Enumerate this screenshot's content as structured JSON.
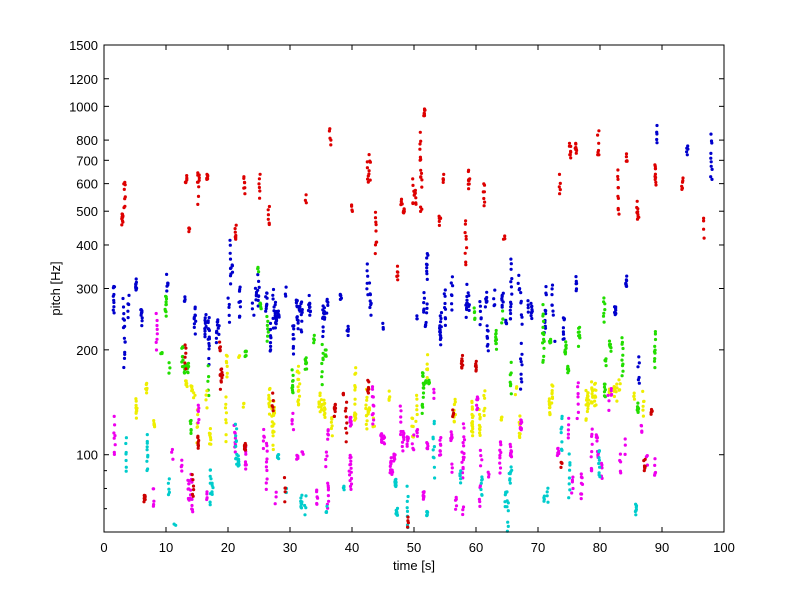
{
  "chart_data": {
    "type": "scatter",
    "title": "",
    "xlabel": "time [s]",
    "ylabel": "pitch [Hz]",
    "xlim": [
      0,
      100
    ],
    "ylim": [
      60,
      1500
    ],
    "yscale": "log",
    "grid": false,
    "legend": "none",
    "x_ticks": [
      "0",
      "10",
      "20",
      "30",
      "40",
      "50",
      "60",
      "70",
      "80",
      "90",
      "100"
    ],
    "x_tick_values": [
      0,
      10,
      20,
      30,
      40,
      50,
      60,
      70,
      80,
      90,
      100
    ],
    "y_ticks": [
      "100",
      "200",
      "300",
      "400",
      "500",
      "600",
      "700",
      "800",
      "1000",
      "1200",
      "1500"
    ],
    "y_tick_values": [
      100,
      200,
      300,
      400,
      500,
      600,
      700,
      800,
      1000,
      1200,
      1500
    ],
    "series": [
      {
        "color": "#0000cc",
        "trend": [
          [
            2,
            260
          ],
          [
            10,
            255
          ],
          [
            20,
            270
          ],
          [
            30,
            270
          ],
          [
            40,
            255
          ],
          [
            50,
            260
          ],
          [
            60,
            255
          ],
          [
            70,
            265
          ],
          [
            80,
            265
          ],
          [
            88,
            240
          ]
        ],
        "spread": 0.13,
        "t_range": [
          1.5,
          89
        ],
        "count": 520
      },
      {
        "color": "#22dd00",
        "trend": [
          [
            2,
            190
          ],
          [
            10,
            185
          ],
          [
            20,
            200
          ],
          [
            30,
            195
          ],
          [
            40,
            185
          ],
          [
            50,
            190
          ],
          [
            60,
            180
          ],
          [
            70,
            190
          ],
          [
            80,
            185
          ],
          [
            88,
            175
          ]
        ],
        "spread": 0.22,
        "t_range": [
          1.5,
          89
        ],
        "count": 260
      },
      {
        "color": "#eeee00",
        "trend": [
          [
            2,
            150
          ],
          [
            10,
            145
          ],
          [
            20,
            150
          ],
          [
            30,
            145
          ],
          [
            40,
            140
          ],
          [
            50,
            150
          ],
          [
            60,
            140
          ],
          [
            70,
            145
          ],
          [
            80,
            145
          ],
          [
            88,
            150
          ]
        ],
        "spread": 0.12,
        "t_range": [
          1.5,
          89
        ],
        "count": 360
      },
      {
        "color": "#ee00ee",
        "trend": [
          [
            2,
            105
          ],
          [
            10,
            100
          ],
          [
            20,
            105
          ],
          [
            30,
            100
          ],
          [
            40,
            100
          ],
          [
            50,
            105
          ],
          [
            60,
            100
          ],
          [
            70,
            100
          ],
          [
            80,
            100
          ],
          [
            88,
            95
          ]
        ],
        "spread": 0.18,
        "t_range": [
          1.5,
          89
        ],
        "count": 430
      },
      {
        "color": "#00cccc",
        "trend": [
          [
            2,
            85
          ],
          [
            10,
            82
          ],
          [
            20,
            85
          ],
          [
            30,
            82
          ],
          [
            40,
            80
          ],
          [
            50,
            84
          ],
          [
            60,
            80
          ],
          [
            70,
            82
          ],
          [
            80,
            82
          ],
          [
            88,
            78
          ]
        ],
        "spread": 0.14,
        "t_range": [
          1.5,
          89
        ],
        "count": 220
      },
      {
        "color": "#dd0000",
        "trend": [
          [
            2,
            550
          ],
          [
            10,
            560
          ],
          [
            20,
            580
          ],
          [
            30,
            600
          ],
          [
            40,
            520
          ],
          [
            50,
            560
          ],
          [
            60,
            540
          ],
          [
            70,
            560
          ],
          [
            80,
            580
          ],
          [
            88,
            600
          ],
          [
            95,
            700
          ]
        ],
        "spread": 0.22,
        "t_range": [
          1.5,
          98
        ],
        "count": 270
      },
      {
        "color": "#cc0000",
        "trend": [
          [
            2,
            120
          ],
          [
            20,
            125
          ],
          [
            40,
            120
          ],
          [
            60,
            115
          ],
          [
            80,
            115
          ],
          [
            88,
            110
          ]
        ],
        "spread": 0.35,
        "t_range": [
          1.5,
          89
        ],
        "count": 140
      },
      {
        "color": "#0000cc",
        "trend": [
          [
            90,
            780
          ],
          [
            95,
            800
          ],
          [
            98,
            820
          ]
        ],
        "spread": 0.2,
        "t_range": [
          89,
          98
        ],
        "count": 20
      }
    ]
  }
}
